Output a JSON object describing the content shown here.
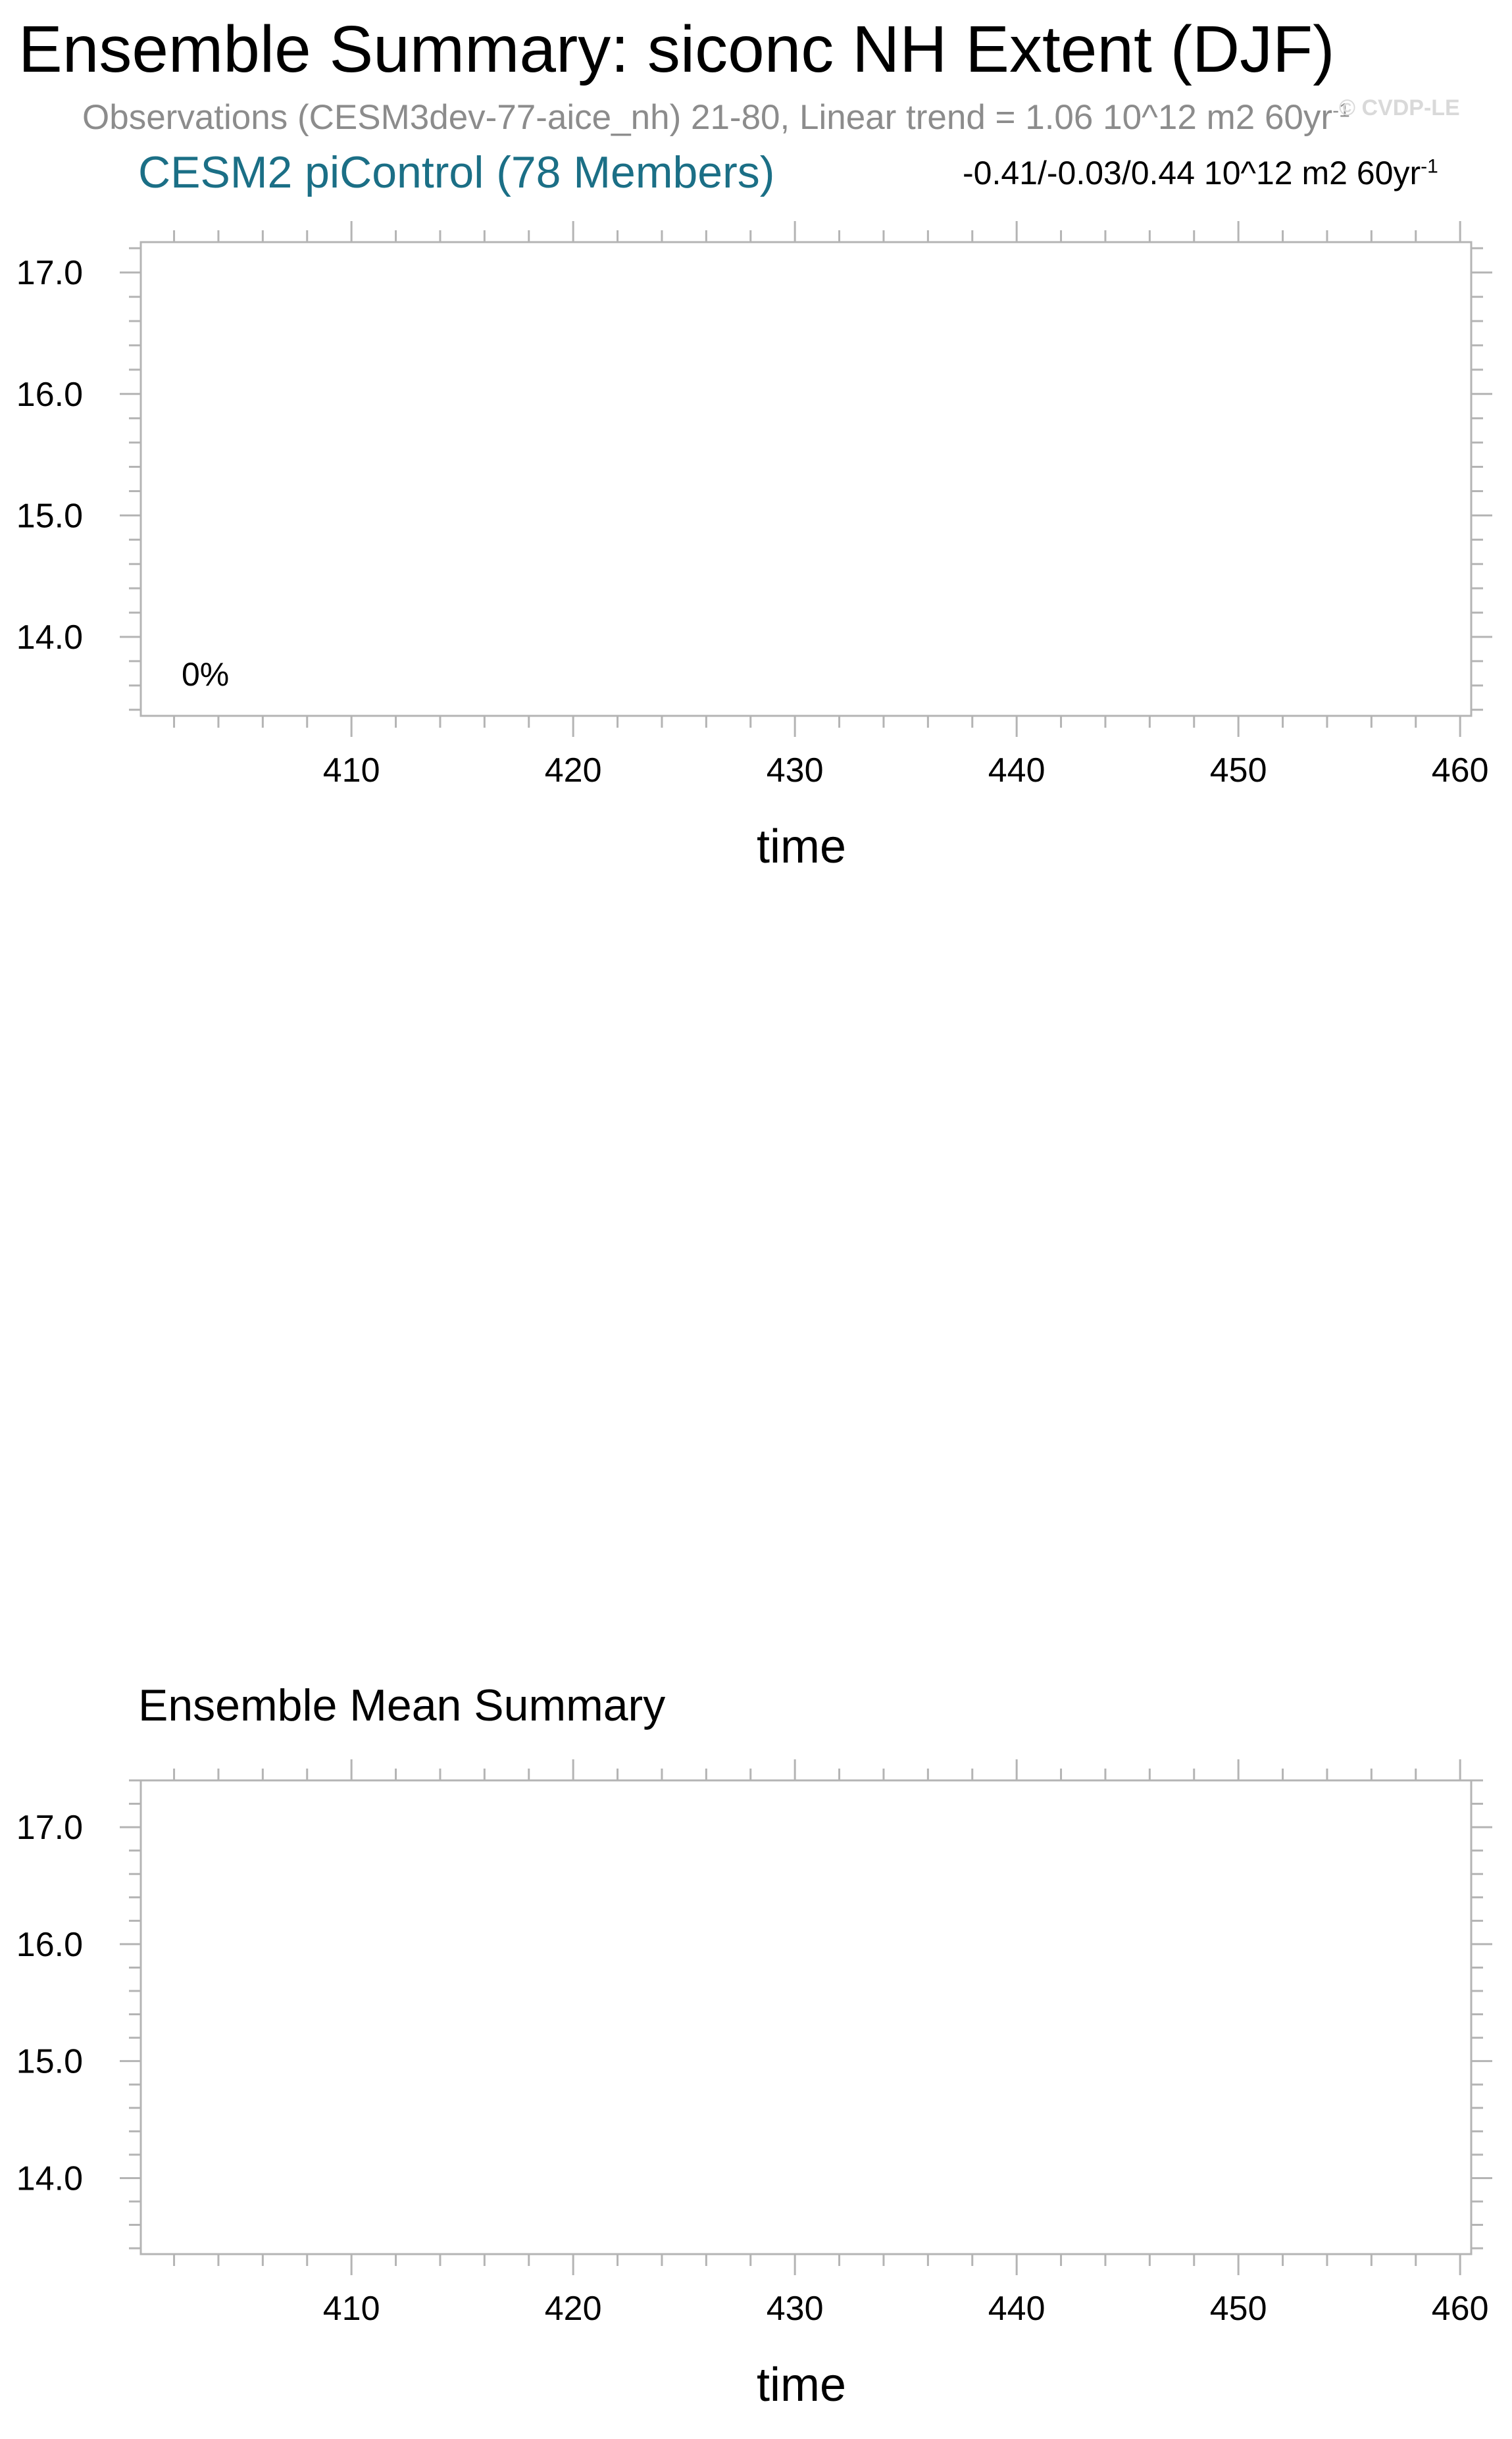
{
  "title": "Ensemble Summary: siconc NH Extent (DJF)",
  "subtitle": {
    "text": "Observations (CESM3dev-77-aice_nh) 21-80, Linear trend = 1.06 10^12 m2 60yr",
    "sup": "-1"
  },
  "watermark": "© CVDP-LE",
  "colors": {
    "panel_title": "#1b6f86",
    "subtitle": "#8c8c8c",
    "frame": "#b4b4b4"
  },
  "chart_data": [
    {
      "type": "line",
      "title": "CESM2 piControl (78 Members)",
      "trend_label": {
        "text": "-0.41/-0.03/0.44 10^12 m2 60yr",
        "sup": "-1"
      },
      "percent_label": "0%",
      "xlabel": "time",
      "ylabel": "",
      "xlim": [
        400.5,
        460.5
      ],
      "ylim": [
        13.35,
        17.25
      ],
      "x_ticks": [
        410,
        420,
        430,
        440,
        450,
        460
      ],
      "x_tick_labels": [
        "410",
        "420",
        "430",
        "440",
        "450",
        "460"
      ],
      "y_ticks": [
        14.0,
        15.0,
        16.0,
        17.0
      ],
      "y_tick_labels": [
        "14.0",
        "15.0",
        "16.0",
        "17.0"
      ],
      "series": [],
      "grid": false
    },
    {
      "type": "line",
      "title": "Ensemble Mean Summary",
      "xlabel": "time",
      "ylabel": "",
      "xlim": [
        400.5,
        460.5
      ],
      "ylim": [
        13.35,
        17.4
      ],
      "x_ticks": [
        410,
        420,
        430,
        440,
        450,
        460
      ],
      "x_tick_labels": [
        "410",
        "420",
        "430",
        "440",
        "450",
        "460"
      ],
      "y_ticks": [
        14.0,
        15.0,
        16.0,
        17.0
      ],
      "y_tick_labels": [
        "14.0",
        "15.0",
        "16.0",
        "17.0"
      ],
      "series": [],
      "grid": false
    }
  ]
}
